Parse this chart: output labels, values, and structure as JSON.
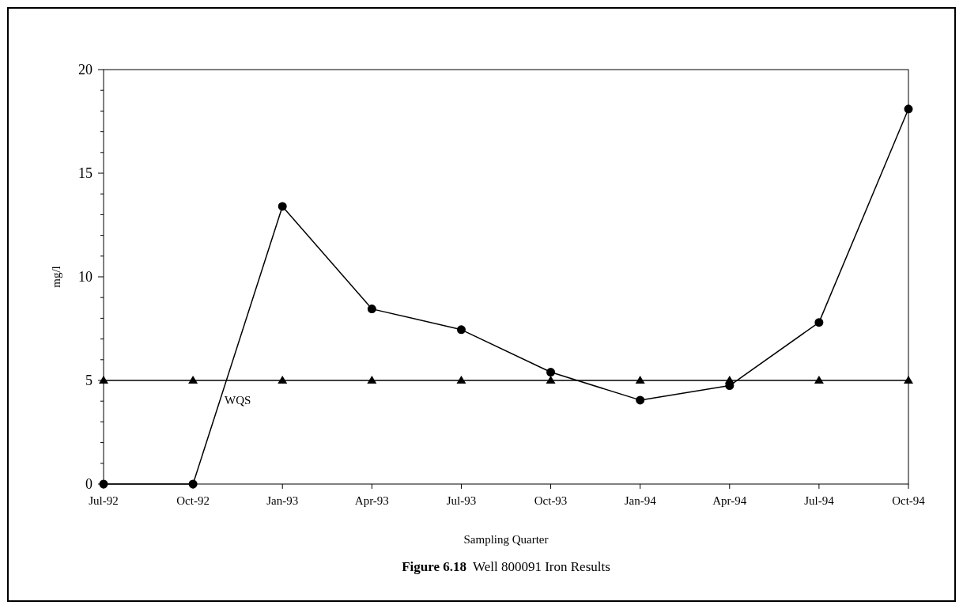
{
  "chart_data": {
    "type": "line",
    "title": "Figure 6.18",
    "subtitle": "Well 800091 Iron Results",
    "xlabel": "Sampling Quarter",
    "ylabel": "mg/l",
    "categories": [
      "Jul-92",
      "Oct-92",
      "Jan-93",
      "Apr-93",
      "Jul-93",
      "Oct-93",
      "Jan-94",
      "Apr-94",
      "Jul-94",
      "Oct-94"
    ],
    "series": [
      {
        "color": "#000000",
        "marker": "circle",
        "values": [
          0,
          0,
          13.4,
          8.45,
          7.45,
          5.4,
          4.05,
          4.75,
          7.8,
          18.1
        ]
      },
      {
        "name": "WQS",
        "color": "#000000",
        "marker": "triangle",
        "values": [
          5,
          5,
          5,
          5,
          5,
          5,
          5,
          5,
          5,
          5
        ]
      }
    ],
    "ylim": [
      0,
      20
    ],
    "yticks": [
      0,
      {
        "value": 1,
        "label": null
      },
      {
        "value": 2,
        "label": null
      },
      {
        "value": 3,
        "label": null
      },
      {
        "value": 4,
        "label": null
      },
      5,
      {
        "value": 6,
        "label": null
      },
      {
        "value": 7,
        "label": null
      },
      {
        "value": 8,
        "label": null
      },
      {
        "value": 9,
        "label": null
      },
      10,
      {
        "value": 11,
        "label": null
      },
      {
        "value": 12,
        "label": null
      },
      {
        "value": 13,
        "label": null
      },
      {
        "value": 14,
        "label": null
      },
      15,
      {
        "value": 16,
        "label": null
      },
      {
        "value": 17,
        "label": null
      },
      {
        "value": 18,
        "label": null
      },
      {
        "value": 19,
        "label": null
      },
      20
    ],
    "line_style": "solid",
    "grid": false
  }
}
